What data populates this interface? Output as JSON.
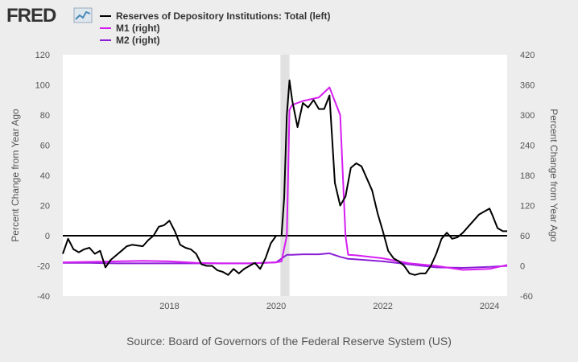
{
  "header": {
    "logo_text": "FRED"
  },
  "legend": [
    {
      "label": "Reserves of Depository Institutions: Total (left)",
      "color": "#000000"
    },
    {
      "label": "M1 (right)",
      "color": "#d61ef2"
    },
    {
      "label": "M2 (right)",
      "color": "#8b1fd6"
    }
  ],
  "source": "Source: Board of Governors of the Federal Reserve System (US)",
  "chart_data": {
    "type": "line",
    "title": "",
    "xlabel": "",
    "ylabel_left": "Percent Change from Year Ago",
    "ylabel_right": "Percent Change from Year Ago",
    "xlim": [
      2016.0,
      2024.33
    ],
    "ylim_left": [
      -40,
      120
    ],
    "ylim_right": [
      -60,
      420
    ],
    "yticks_left": [
      -40,
      -20,
      0,
      20,
      40,
      60,
      80,
      100,
      120
    ],
    "yticks_right": [
      -60,
      0,
      60,
      120,
      180,
      240,
      300,
      360,
      420
    ],
    "xticks": [
      2018,
      2020,
      2022,
      2024
    ],
    "recession": [
      2020.08,
      2020.25
    ],
    "series": [
      {
        "name": "Reserves of Depository Institutions: Total (left)",
        "axis": "left",
        "color": "#000000",
        "x": [
          2016.0,
          2016.1,
          2016.2,
          2016.3,
          2016.4,
          2016.5,
          2016.6,
          2016.7,
          2016.8,
          2016.9,
          2017.0,
          2017.1,
          2017.2,
          2017.3,
          2017.5,
          2017.6,
          2017.7,
          2017.8,
          2017.9,
          2018.0,
          2018.1,
          2018.2,
          2018.3,
          2018.4,
          2018.5,
          2018.6,
          2018.7,
          2018.8,
          2018.9,
          2019.0,
          2019.1,
          2019.2,
          2019.3,
          2019.4,
          2019.5,
          2019.6,
          2019.7,
          2019.8,
          2019.9,
          2020.0,
          2020.1,
          2020.15,
          2020.2,
          2020.25,
          2020.3,
          2020.4,
          2020.5,
          2020.6,
          2020.7,
          2020.8,
          2020.9,
          2021.0,
          2021.1,
          2021.2,
          2021.3,
          2021.4,
          2021.5,
          2021.6,
          2021.7,
          2021.8,
          2021.9,
          2022.0,
          2022.1,
          2022.2,
          2022.3,
          2022.4,
          2022.5,
          2022.6,
          2022.7,
          2022.8,
          2022.9,
          2023.0,
          2023.1,
          2023.2,
          2023.3,
          2023.4,
          2023.5,
          2023.6,
          2023.7,
          2023.8,
          2023.9,
          2024.0,
          2024.05,
          2024.15,
          2024.25,
          2024.33
        ],
        "y": [
          -12,
          -2,
          -9,
          -11,
          -9,
          -8,
          -12,
          -10,
          -21,
          -16,
          -13,
          -10,
          -7,
          -6,
          -7,
          -3,
          0,
          6,
          7,
          10,
          3,
          -6,
          -8,
          -9,
          -12,
          -19,
          -20,
          -20,
          -23,
          -24,
          -26,
          -22,
          -25,
          -22,
          -20,
          -18,
          -22,
          -15,
          -5,
          0,
          0,
          25,
          80,
          103,
          90,
          72,
          88,
          85,
          90,
          84,
          84,
          93,
          35,
          20,
          26,
          45,
          48,
          46,
          38,
          30,
          15,
          3,
          -10,
          -15,
          -17,
          -20,
          -25,
          -26,
          -25,
          -25,
          -20,
          -12,
          -2,
          2,
          -2,
          -1,
          2,
          6,
          10,
          14,
          16,
          18,
          14,
          5,
          3,
          3
        ]
      },
      {
        "name": "M1 (right)",
        "axis": "right",
        "color": "#d61ef2",
        "x": [
          2016.0,
          2016.5,
          2017.0,
          2017.5,
          2018.0,
          2018.5,
          2019.0,
          2019.5,
          2019.8,
          2020.0,
          2020.1,
          2020.2,
          2020.25,
          2020.3,
          2020.5,
          2020.8,
          2021.0,
          2021.2,
          2021.3,
          2021.35,
          2021.5,
          2022.0,
          2022.5,
          2023.0,
          2023.5,
          2024.0,
          2024.33
        ],
        "y": [
          7,
          8,
          9,
          10,
          9,
          6,
          5,
          5,
          6,
          7,
          9,
          60,
          310,
          320,
          328,
          335,
          355,
          300,
          60,
          22,
          21,
          15,
          5,
          0,
          -8,
          -6,
          2
        ]
      },
      {
        "name": "M2 (right)",
        "axis": "right",
        "color": "#8b1fd6",
        "x": [
          2016.0,
          2016.5,
          2017.0,
          2017.5,
          2018.0,
          2018.5,
          2019.0,
          2019.5,
          2020.0,
          2020.2,
          2020.3,
          2020.5,
          2020.8,
          2021.0,
          2021.2,
          2021.35,
          2021.5,
          2022.0,
          2022.5,
          2023.0,
          2023.5,
          2024.0,
          2024.33
        ],
        "y": [
          6,
          6,
          5,
          5,
          5,
          5,
          5,
          5,
          7,
          22,
          22,
          23,
          23,
          25,
          18,
          14,
          13,
          9,
          3,
          -3,
          -4,
          -2,
          0
        ]
      }
    ]
  }
}
